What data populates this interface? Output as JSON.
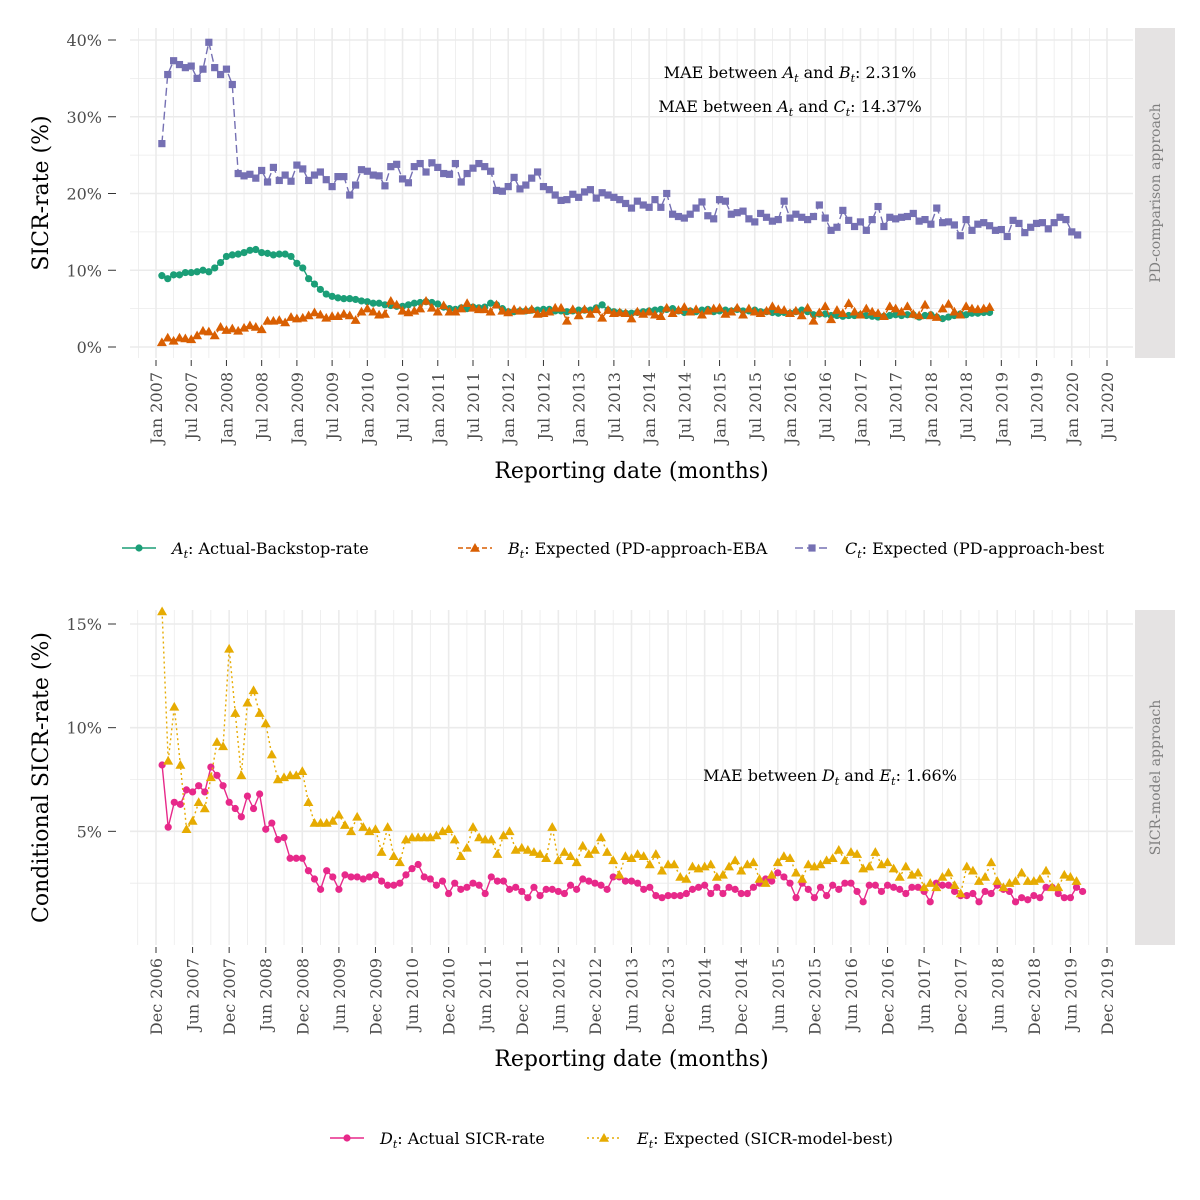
{
  "colors": {
    "A": "#1b9e77",
    "B": "#d95f02",
    "C": "#7570b3",
    "D": "#e7298a",
    "E": "#e6ab02",
    "grid": "#ebebeb",
    "strip": "#e5e3e3"
  },
  "chart_data": [
    {
      "type": "line",
      "panel": "PD-comparison approach",
      "xlabel": "Reporting date (months)",
      "ylabel": "SICR-rate (%)",
      "ylim": [
        0,
        40
      ],
      "yticks": [
        "0%",
        "10%",
        "20%",
        "30%",
        "40%"
      ],
      "xticks": [
        "Jan 2007",
        "Jul 2007",
        "Jan 2008",
        "Jul 2008",
        "Jan 2009",
        "Jul 2009",
        "Jan 2010",
        "Jul 2010",
        "Jan 2011",
        "Jul 2011",
        "Jan 2012",
        "Jul 2012",
        "Jan 2013",
        "Jul 2013",
        "Jan 2014",
        "Jul 2014",
        "Jan 2015",
        "Jul 2015",
        "Jan 2016",
        "Jul 2016",
        "Jan 2017",
        "Jul 2017",
        "Jan 2018",
        "Jul 2018",
        "Jan 2019",
        "Jul 2019",
        "Jan 2020",
        "Jul 2020"
      ],
      "x_start": "Feb 2007",
      "annotations": [
        {
          "pre": "MAE between ",
          "v1": "A",
          "mid": " and ",
          "v2": "B",
          "post": ": 2.31%"
        },
        {
          "pre": "MAE between ",
          "v1": "A",
          "mid": " and ",
          "v2": "C",
          "post": ": 14.37%"
        }
      ],
      "series": [
        {
          "key": "A",
          "marker": "circle",
          "dash": "",
          "legend_var": "A",
          "legend_label": ": Actual-Backstop-rate",
          "values": [
            9.3,
            8.9,
            9.4,
            9.4,
            9.7,
            9.7,
            9.8,
            10.0,
            9.8,
            10.3,
            11.0,
            11.8,
            12.0,
            12.1,
            12.3,
            12.6,
            12.7,
            12.3,
            12.2,
            12.0,
            12.1,
            12.1,
            11.8,
            10.9,
            10.3,
            8.9,
            8.2,
            7.5,
            6.9,
            6.6,
            6.4,
            6.3,
            6.3,
            6.2,
            6.0,
            5.9,
            5.7,
            5.7,
            5.5,
            5.4,
            5.3,
            5.3,
            5.5,
            5.7,
            5.8,
            5.9,
            5.8,
            5.6,
            5.2,
            5.0,
            4.9,
            5.1,
            5.0,
            5.2,
            5.1,
            5.2,
            5.7,
            5.5,
            5.0,
            4.6,
            4.6,
            4.7,
            4.7,
            4.8,
            4.8,
            4.9,
            4.9,
            4.7,
            4.7,
            4.6,
            4.7,
            4.8,
            4.8,
            4.8,
            5.1,
            5.5,
            4.8,
            4.6,
            4.5,
            4.4,
            4.4,
            4.5,
            4.6,
            4.7,
            4.8,
            4.9,
            4.9,
            5.0,
            4.7,
            4.5,
            4.7,
            4.6,
            4.8,
            4.9,
            4.6,
            4.7,
            4.8,
            4.7,
            4.9,
            4.7,
            4.7,
            4.8,
            4.6,
            4.6,
            4.5,
            4.4,
            4.5,
            4.4,
            4.6,
            4.8,
            4.6,
            4.2,
            4.3,
            4.3,
            4.1,
            4.1,
            4.0,
            4.1,
            4.1,
            4.2,
            4.1,
            4.0,
            3.9,
            4.0,
            4.1,
            4.2,
            4.1,
            4.2,
            4.2,
            3.9,
            4.1,
            4.2,
            3.9,
            3.7,
            3.9,
            4.1,
            4.3,
            4.2,
            4.4,
            4.4,
            4.5,
            4.5
          ]
        },
        {
          "key": "B",
          "marker": "triangle",
          "dash": "5,3",
          "legend_var": "B",
          "legend_label": ": Expected (PD-approach-EBA",
          "values": [
            0.6,
            1.2,
            0.8,
            1.2,
            1.1,
            1.0,
            1.5,
            2.1,
            2.0,
            1.5,
            2.6,
            2.2,
            2.4,
            2.1,
            2.5,
            2.8,
            2.6,
            2.3,
            3.4,
            3.4,
            3.5,
            3.2,
            3.9,
            3.7,
            3.8,
            4.1,
            4.5,
            4.2,
            3.8,
            4.0,
            4.0,
            4.3,
            4.1,
            3.5,
            4.6,
            5.0,
            4.6,
            4.2,
            4.3,
            6.0,
            5.5,
            4.7,
            4.5,
            4.7,
            5.0,
            6.0,
            5.1,
            4.6,
            5.4,
            4.6,
            4.6,
            5.0,
            5.7,
            5.1,
            4.9,
            4.9,
            4.6,
            5.5,
            4.7,
            4.5,
            4.9,
            4.7,
            4.8,
            4.9,
            4.3,
            4.4,
            4.6,
            5.1,
            5.1,
            3.4,
            4.9,
            4.1,
            4.9,
            4.3,
            4.9,
            3.8,
            4.8,
            4.4,
            4.5,
            4.4,
            3.7,
            4.6,
            4.3,
            4.6,
            4.2,
            4.0,
            5.1,
            4.4,
            4.8,
            5.2,
            4.6,
            4.9,
            4.2,
            4.7,
            5.0,
            5.1,
            4.3,
            4.6,
            5.1,
            4.2,
            5.0,
            4.6,
            4.4,
            4.7,
            5.3,
            4.9,
            4.8,
            4.4,
            4.7,
            4.1,
            5.1,
            3.4,
            4.5,
            5.3,
            3.6,
            4.8,
            4.4,
            5.7,
            4.6,
            4.2,
            5.0,
            4.6,
            4.4,
            4.0,
            5.3,
            5.0,
            4.6,
            5.3,
            4.3,
            4.1,
            5.5,
            4.1,
            3.9,
            5.0,
            5.6,
            4.6,
            4.2,
            5.3,
            5.0,
            4.9,
            5.0,
            5.2
          ]
        },
        {
          "key": "C",
          "marker": "square",
          "dash": "8,4",
          "legend_var": "C",
          "legend_label": ": Expected (PD-approach-best",
          "values": [
            26.5,
            35.5,
            37.3,
            36.8,
            36.4,
            36.6,
            35.0,
            36.2,
            39.7,
            36.4,
            35.5,
            36.2,
            34.2,
            22.6,
            22.3,
            22.5,
            22.0,
            23.0,
            21.5,
            23.4,
            21.7,
            22.4,
            21.6,
            23.7,
            23.2,
            21.7,
            22.4,
            22.8,
            21.8,
            20.9,
            22.2,
            22.2,
            19.8,
            21.1,
            23.1,
            22.9,
            22.4,
            22.3,
            21.0,
            23.5,
            23.8,
            21.9,
            21.4,
            23.5,
            23.9,
            22.8,
            24.0,
            23.4,
            22.6,
            22.5,
            23.9,
            21.5,
            22.6,
            23.3,
            23.9,
            23.5,
            22.9,
            20.4,
            20.3,
            20.9,
            22.1,
            20.6,
            21.1,
            22.0,
            22.8,
            20.9,
            20.5,
            19.8,
            19.1,
            19.2,
            19.9,
            19.5,
            20.2,
            20.5,
            19.4,
            20.1,
            19.8,
            19.5,
            19.2,
            18.7,
            18.1,
            19.0,
            18.5,
            18.2,
            19.2,
            18.2,
            20.0,
            17.3,
            17.0,
            16.8,
            17.3,
            18.1,
            18.9,
            17.1,
            16.7,
            19.2,
            19.0,
            17.3,
            17.5,
            17.7,
            16.7,
            16.3,
            17.4,
            16.9,
            16.4,
            16.6,
            19.0,
            16.8,
            17.3,
            16.9,
            16.6,
            17.0,
            18.5,
            16.8,
            15.2,
            15.6,
            17.8,
            16.5,
            15.7,
            16.3,
            15.2,
            16.6,
            18.3,
            15.7,
            16.9,
            16.7,
            16.9,
            17.0,
            17.4,
            16.4,
            16.6,
            16.0,
            18.1,
            16.2,
            16.3,
            15.9,
            14.5,
            16.6,
            15.2,
            16.0,
            16.2,
            15.8,
            15.2,
            15.3,
            14.4,
            16.5,
            16.1,
            14.9,
            15.6,
            16.1,
            16.2,
            15.4,
            16.2,
            16.9,
            16.6,
            15.0,
            14.6
          ]
        }
      ]
    },
    {
      "type": "line",
      "panel": "SICR-model approach",
      "xlabel": "Reporting date (months)",
      "ylabel": "Conditional SICR-rate (%)",
      "ylim": [
        0,
        15
      ],
      "yticks": [
        "5%",
        "10%",
        "15%"
      ],
      "xticks": [
        "Dec 2006",
        "Jun 2007",
        "Dec 2007",
        "Jun 2008",
        "Dec 2008",
        "Jun 2009",
        "Dec 2009",
        "Jun 2010",
        "Dec 2010",
        "Jun 2011",
        "Dec 2011",
        "Jun 2012",
        "Dec 2012",
        "Jun 2013",
        "Dec 2013",
        "Jun 2014",
        "Dec 2014",
        "Jun 2015",
        "Dec 2015",
        "Jun 2016",
        "Dec 2016",
        "Jun 2017",
        "Dec 2017",
        "Jun 2018",
        "Dec 2018",
        "Jun 2019",
        "Dec 2019"
      ],
      "x_start": "Jan 2007",
      "annotations": [
        {
          "pre": "MAE between ",
          "v1": "D",
          "mid": " and ",
          "v2": "E",
          "post": ": 1.66%"
        }
      ],
      "series": [
        {
          "key": "D",
          "marker": "circle",
          "dash": "",
          "legend_var": "D",
          "legend_label": ": Actual SICR-rate",
          "values": [
            8.2,
            5.2,
            6.4,
            6.3,
            7.0,
            6.9,
            7.2,
            6.9,
            8.1,
            7.7,
            7.2,
            6.4,
            6.1,
            5.7,
            6.7,
            6.1,
            6.8,
            5.1,
            5.4,
            4.6,
            4.7,
            3.7,
            3.7,
            3.7,
            3.1,
            2.7,
            2.2,
            3.1,
            2.8,
            2.2,
            2.9,
            2.8,
            2.8,
            2.7,
            2.8,
            2.9,
            2.6,
            2.4,
            2.4,
            2.5,
            2.9,
            3.2,
            3.4,
            2.8,
            2.7,
            2.4,
            2.6,
            2.0,
            2.5,
            2.2,
            2.3,
            2.5,
            2.4,
            2.0,
            2.8,
            2.6,
            2.6,
            2.2,
            2.3,
            2.1,
            1.8,
            2.3,
            1.9,
            2.2,
            2.2,
            2.1,
            2.0,
            2.4,
            2.2,
            2.7,
            2.6,
            2.5,
            2.4,
            2.2,
            2.8,
            2.8,
            2.6,
            2.6,
            2.5,
            2.2,
            2.3,
            1.9,
            1.8,
            1.9,
            1.9,
            1.9,
            2.0,
            2.2,
            2.3,
            2.4,
            2.0,
            2.3,
            2.0,
            2.3,
            2.2,
            2.0,
            2.0,
            2.3,
            2.5,
            2.7,
            2.6,
            3.0,
            2.8,
            2.5,
            1.8,
            2.5,
            2.2,
            1.8,
            2.3,
            1.9,
            2.4,
            2.2,
            2.5,
            2.5,
            2.1,
            1.6,
            2.4,
            2.4,
            2.1,
            2.4,
            2.3,
            2.2,
            2.0,
            2.3,
            2.3,
            2.1,
            1.6,
            2.5,
            2.4,
            2.4,
            2.1,
            1.9,
            1.9,
            2.0,
            1.6,
            2.1,
            2.0,
            2.4,
            2.2,
            2.1,
            1.6,
            1.8,
            1.7,
            1.9,
            1.8,
            2.3,
            2.3,
            2.0,
            1.8,
            1.8,
            2.3,
            2.1
          ]
        },
        {
          "key": "E",
          "marker": "triangle",
          "dash": "2,3",
          "legend_var": "E",
          "legend_label": ": Expected (SICR-model-best)",
          "values": [
            15.6,
            8.4,
            11.0,
            8.2,
            5.1,
            5.5,
            6.4,
            6.1,
            7.6,
            9.3,
            9.1,
            13.8,
            10.7,
            7.7,
            11.2,
            11.8,
            10.7,
            10.2,
            8.7,
            7.5,
            7.6,
            7.7,
            7.7,
            7.9,
            6.4,
            5.4,
            5.4,
            5.4,
            5.5,
            5.8,
            5.3,
            5.0,
            5.7,
            5.2,
            5.0,
            5.1,
            4.0,
            5.2,
            3.8,
            3.5,
            4.6,
            4.7,
            4.7,
            4.7,
            4.7,
            4.8,
            5.0,
            5.1,
            4.6,
            3.8,
            4.2,
            5.2,
            4.7,
            4.6,
            4.6,
            3.9,
            4.8,
            5.0,
            4.1,
            4.2,
            4.1,
            4.0,
            3.9,
            3.7,
            5.2,
            3.6,
            4.0,
            3.8,
            3.5,
            4.3,
            3.9,
            4.1,
            4.7,
            4.0,
            3.6,
            2.9,
            3.8,
            3.7,
            3.9,
            3.8,
            3.4,
            3.9,
            3.1,
            3.4,
            3.4,
            2.8,
            2.7,
            3.3,
            3.2,
            3.3,
            3.4,
            2.8,
            2.9,
            3.3,
            3.6,
            3.1,
            3.4,
            3.5,
            2.7,
            2.5,
            2.9,
            3.5,
            3.8,
            3.7,
            3.0,
            2.7,
            3.4,
            3.3,
            3.4,
            3.6,
            3.7,
            4.1,
            3.6,
            4.0,
            3.9,
            3.2,
            3.3,
            4.0,
            3.4,
            3.5,
            3.2,
            2.8,
            3.3,
            2.9,
            3.0,
            2.3,
            2.5,
            2.3,
            2.8,
            3.0,
            2.4,
            2.0,
            3.3,
            3.1,
            2.6,
            2.8,
            3.5,
            2.6,
            2.3,
            2.5,
            2.6,
            3.0,
            2.6,
            2.6,
            2.7,
            3.1,
            2.3,
            2.3,
            2.9,
            2.8,
            2.6
          ]
        }
      ]
    }
  ]
}
